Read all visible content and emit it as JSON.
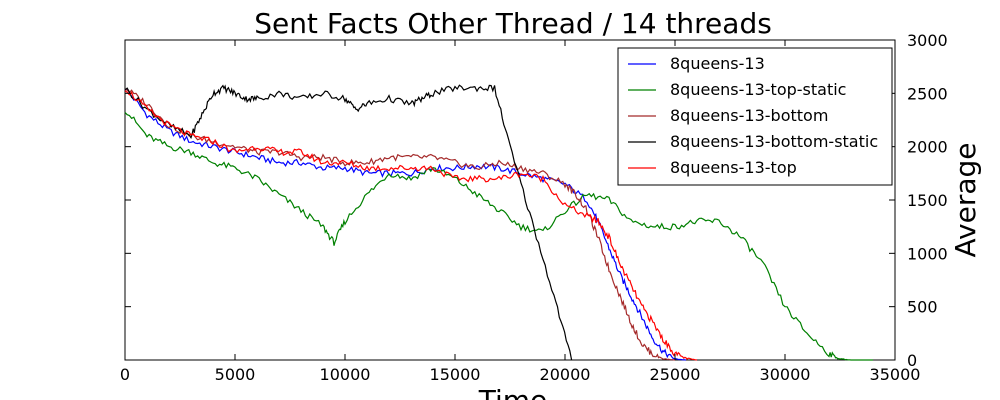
{
  "chart_data": {
    "type": "line",
    "title": "Sent Facts Other Thread / 14 threads",
    "xlabel": "Time",
    "ylabel": "Average",
    "xlim": [
      0,
      35000
    ],
    "ylim": [
      0,
      3000
    ],
    "x_ticks": [
      0,
      5000,
      10000,
      15000,
      20000,
      25000,
      30000,
      35000
    ],
    "y_ticks": [
      0,
      500,
      1000,
      1500,
      2000,
      2500,
      3000
    ],
    "y_axis_side": "right",
    "grid": false,
    "legend_position": "top-right",
    "series": [
      {
        "name": "8queens-13",
        "color": "#0000ff",
        "x": [
          0,
          1000,
          2000,
          3000,
          4000,
          5000,
          6000,
          7000,
          8000,
          9000,
          10000,
          11000,
          12000,
          13000,
          14000,
          15000,
          16000,
          17000,
          18000,
          19000,
          20000,
          21000,
          21500,
          22000,
          22500,
          23000,
          23500,
          24000,
          24500,
          25000,
          25500
        ],
        "y": [
          2550,
          2300,
          2150,
          2050,
          2000,
          1950,
          1900,
          1850,
          1850,
          1800,
          1800,
          1750,
          1750,
          1750,
          1800,
          1800,
          1820,
          1800,
          1750,
          1700,
          1650,
          1500,
          1300,
          1050,
          800,
          600,
          400,
          200,
          70,
          10,
          0
        ]
      },
      {
        "name": "8queens-13-top-static",
        "color": "#008000",
        "x": [
          0,
          1000,
          2000,
          3000,
          4000,
          5000,
          6000,
          7000,
          8000,
          9000,
          9500,
          10000,
          11000,
          12000,
          13000,
          14000,
          15000,
          16000,
          17000,
          18000,
          19000,
          20000,
          21000,
          22000,
          23000,
          24000,
          25000,
          26000,
          27000,
          28000,
          29000,
          30000,
          31000,
          32000,
          32500,
          33000,
          34000
        ],
        "y": [
          2350,
          2100,
          2000,
          1950,
          1850,
          1800,
          1700,
          1550,
          1400,
          1250,
          1100,
          1300,
          1550,
          1750,
          1700,
          1800,
          1700,
          1550,
          1400,
          1250,
          1200,
          1400,
          1550,
          1500,
          1300,
          1250,
          1250,
          1300,
          1300,
          1150,
          900,
          500,
          250,
          60,
          10,
          0,
          0
        ]
      },
      {
        "name": "8queens-13-bottom",
        "color": "#a52a2a",
        "x": [
          0,
          1000,
          2000,
          3000,
          4000,
          5000,
          6000,
          7000,
          8000,
          9000,
          10000,
          11000,
          12000,
          13000,
          14000,
          15000,
          16000,
          17000,
          18000,
          19000,
          20000,
          20500,
          21000,
          21500,
          22000,
          22500,
          23000,
          23500,
          24000,
          24500,
          25000
        ],
        "y": [
          2550,
          2400,
          2200,
          2100,
          2050,
          2000,
          1950,
          1950,
          1900,
          1900,
          1850,
          1850,
          1900,
          1900,
          1900,
          1850,
          1800,
          1850,
          1800,
          1750,
          1650,
          1550,
          1400,
          1150,
          850,
          600,
          350,
          150,
          50,
          10,
          0
        ]
      },
      {
        "name": "8queens-13-bottom-static",
        "color": "#000000",
        "x": [
          0,
          1000,
          2000,
          3000,
          3500,
          4000,
          4500,
          5000,
          5500,
          6000,
          7000,
          8000,
          9000,
          10000,
          10500,
          11000,
          12000,
          13000,
          13500,
          14000,
          15000,
          16000,
          16800,
          17500,
          18500,
          19500,
          20300
        ],
        "y": [
          2550,
          2350,
          2200,
          2100,
          2300,
          2500,
          2550,
          2500,
          2450,
          2450,
          2500,
          2450,
          2500,
          2450,
          2350,
          2400,
          2450,
          2400,
          2450,
          2500,
          2550,
          2550,
          2550,
          2000,
          1300,
          600,
          0
        ]
      },
      {
        "name": "8queens-13-top",
        "color": "#ff0000",
        "x": [
          0,
          1000,
          2000,
          3000,
          4000,
          5000,
          6000,
          7000,
          8000,
          9000,
          10000,
          11000,
          12000,
          13000,
          14000,
          15000,
          16000,
          17000,
          18000,
          19000,
          20000,
          21000,
          21500,
          22000,
          22500,
          23000,
          23500,
          24000,
          24500,
          25000,
          25500,
          26000
        ],
        "y": [
          2550,
          2350,
          2200,
          2100,
          2050,
          1950,
          2000,
          1950,
          1950,
          1850,
          1850,
          1800,
          1800,
          1800,
          1800,
          1700,
          1700,
          1700,
          1750,
          1700,
          1450,
          1350,
          1300,
          1150,
          900,
          700,
          500,
          350,
          180,
          60,
          15,
          0
        ]
      }
    ]
  }
}
